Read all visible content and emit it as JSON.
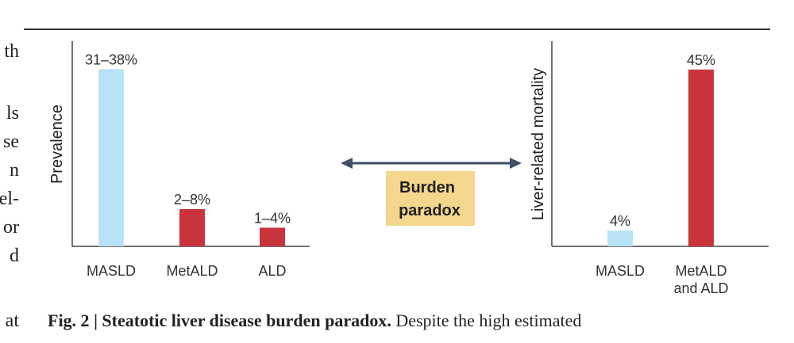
{
  "left_text_fragments": [
    "th",
    "ls",
    "se",
    "n",
    "el-",
    "or",
    "d",
    "at"
  ],
  "caption": {
    "label": "Fig. 2",
    "title": "Steatotic liver disease burden paradox.",
    "text": "Despite the high estimated"
  },
  "center_label": [
    "Burden",
    "paradox"
  ],
  "colors": {
    "masld": "#b8e3f6",
    "metald_ald": "#c9343c",
    "arrow": "#3e4f66",
    "badge": "#f4d68c",
    "axis": "#444444",
    "rule": "#333333"
  },
  "chart_data": [
    {
      "type": "bar",
      "ylabel": "Prevalence",
      "xlabel": "",
      "categories": [
        "MASLD",
        "MetALD",
        "ALD"
      ],
      "values": [
        38,
        8,
        4
      ],
      "labels": [
        "31–38%",
        "2–8%",
        "1–4%"
      ],
      "ylim": [
        0,
        44
      ],
      "grid": false,
      "legend": "none"
    },
    {
      "type": "bar",
      "ylabel": "Liver-related mortality",
      "xlabel": "",
      "categories": [
        [
          "MASLD"
        ],
        [
          "MetALD",
          "and ALD"
        ]
      ],
      "values": [
        4,
        45
      ],
      "labels": [
        "4%",
        "45%"
      ],
      "ylim": [
        0,
        51
      ],
      "grid": false,
      "legend": "none"
    }
  ]
}
